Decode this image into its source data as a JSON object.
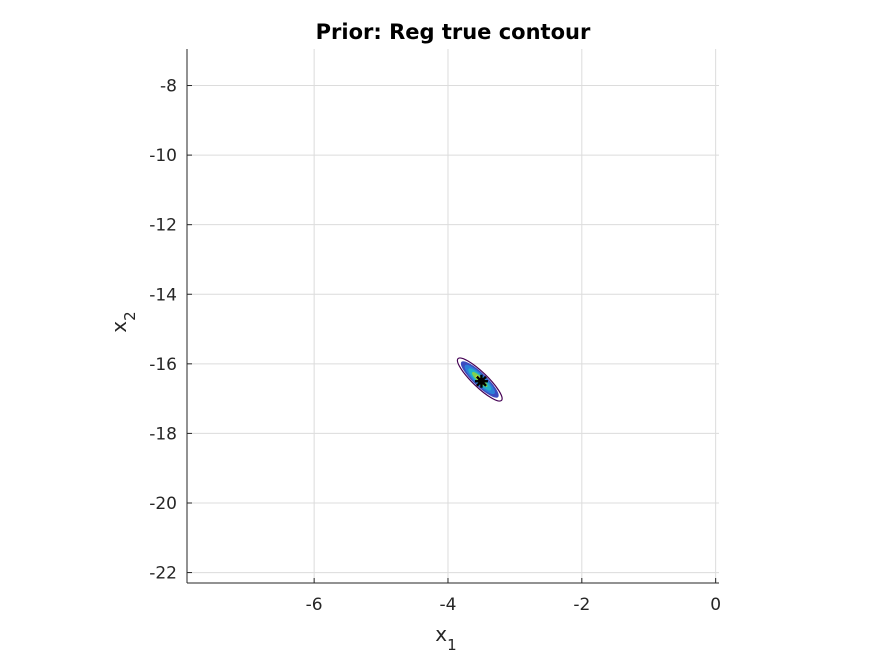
{
  "chart_data": {
    "type": "contour",
    "title": "Prior: Reg true contour",
    "xlabel": {
      "base": "x",
      "subscript": "1"
    },
    "ylabel": {
      "base": "x",
      "subscript": "2"
    },
    "xlim": [
      -7.9,
      0.05
    ],
    "ylim": [
      -22.3,
      -6.95
    ],
    "x_ticks": [
      -6,
      -4,
      -2,
      0
    ],
    "x_tick_labels": [
      "-6",
      "-4",
      "-2",
      "0"
    ],
    "y_ticks": [
      -8,
      -10,
      -12,
      -14,
      -16,
      -18,
      -20,
      -22
    ],
    "y_tick_labels": [
      "-8",
      "-10",
      "-12",
      "-14",
      "-16",
      "-18",
      "-20",
      "-22"
    ],
    "grid": true,
    "contour": {
      "center": [
        -3.52,
        -16.45
      ],
      "major_axis_endpoints": [
        [
          -3.85,
          -15.85
        ],
        [
          -3.2,
          -17.05
        ]
      ],
      "minor_half_width": 0.11,
      "levels": 6,
      "colors": [
        "#440154",
        "#3b4cc0",
        "#2c7fd8",
        "#22b0c8",
        "#7fd34e",
        "#e8e11f"
      ]
    },
    "marker": {
      "x": -3.5,
      "y": -16.5,
      "symbol": "star",
      "color": "#000000"
    }
  }
}
